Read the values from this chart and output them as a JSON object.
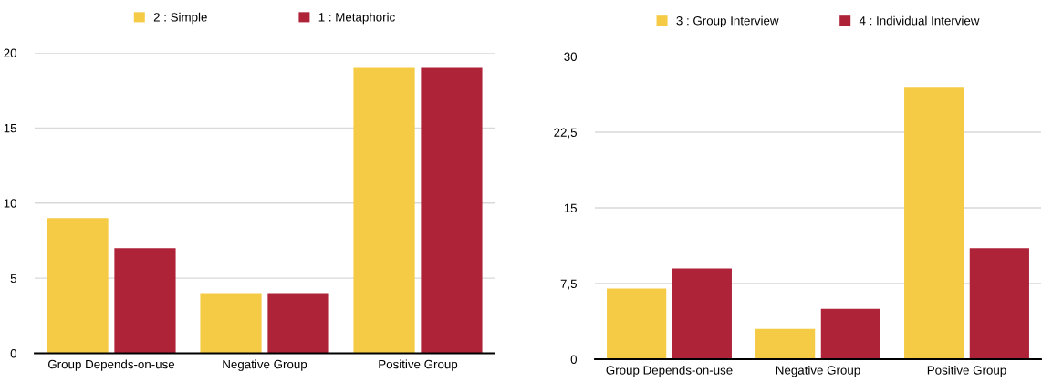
{
  "chart_data": [
    {
      "type": "bar",
      "categories": [
        "Group Depends-on-use",
        "Negative Group",
        "Positive Group"
      ],
      "series": [
        {
          "name": "2 : Simple",
          "color": "#f5cb45",
          "values": [
            9,
            4,
            19
          ]
        },
        {
          "name": "1 : Metaphoric",
          "color": "#af2339",
          "values": [
            7,
            4,
            19
          ]
        }
      ],
      "ylim": [
        0,
        20
      ],
      "yticks": [
        0,
        5,
        10,
        15,
        20
      ],
      "grid": "y",
      "legend": "top"
    },
    {
      "type": "bar",
      "categories": [
        "Group Depends-on-use",
        "Negative Group",
        "Positive Group"
      ],
      "series": [
        {
          "name": "3 : Group Interview",
          "color": "#f5cb45",
          "values": [
            7,
            3,
            27
          ]
        },
        {
          "name": "4 : Individual Interview",
          "color": "#af2339",
          "values": [
            9,
            5,
            11
          ]
        }
      ],
      "ylim": [
        0,
        30
      ],
      "yticks": [
        0,
        {
          "value": 7.5,
          "label": "7,5"
        },
        15,
        {
          "value": 22.5,
          "label": "22,5"
        },
        30
      ],
      "grid": "y",
      "legend": "top"
    }
  ]
}
